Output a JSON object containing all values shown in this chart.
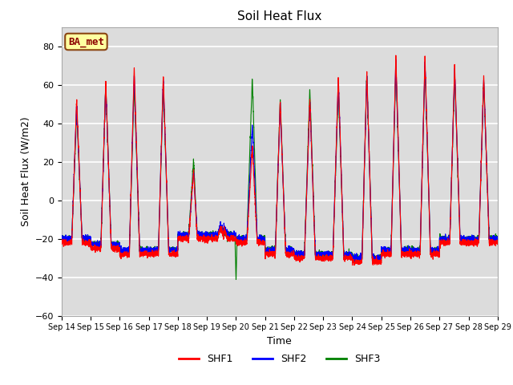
{
  "title": "Soil Heat Flux",
  "xlabel": "Time",
  "ylabel": "Soil Heat Flux (W/m2)",
  "ylim": [
    -60,
    90
  ],
  "yticks": [
    -60,
    -40,
    -20,
    0,
    20,
    40,
    60,
    80
  ],
  "x_tick_labels": [
    "Sep 14",
    "Sep 15",
    "Sep 16",
    "Sep 17",
    "Sep 18",
    "Sep 19",
    "Sep 20",
    "Sep 21",
    "Sep 22",
    "Sep 23",
    "Sep 24",
    "Sep 25",
    "Sep 26",
    "Sep 27",
    "Sep 28",
    "Sep 29"
  ],
  "annotation_text": "BA_met",
  "annotation_box_facecolor": "#FFFFA0",
  "annotation_box_edgecolor": "#8B4513",
  "shf1_color": "red",
  "shf2_color": "blue",
  "shf3_color": "green",
  "background_color": "#DCDCDC",
  "grid_color": "white",
  "legend_entries": [
    "SHF1",
    "SHF2",
    "SHF3"
  ]
}
